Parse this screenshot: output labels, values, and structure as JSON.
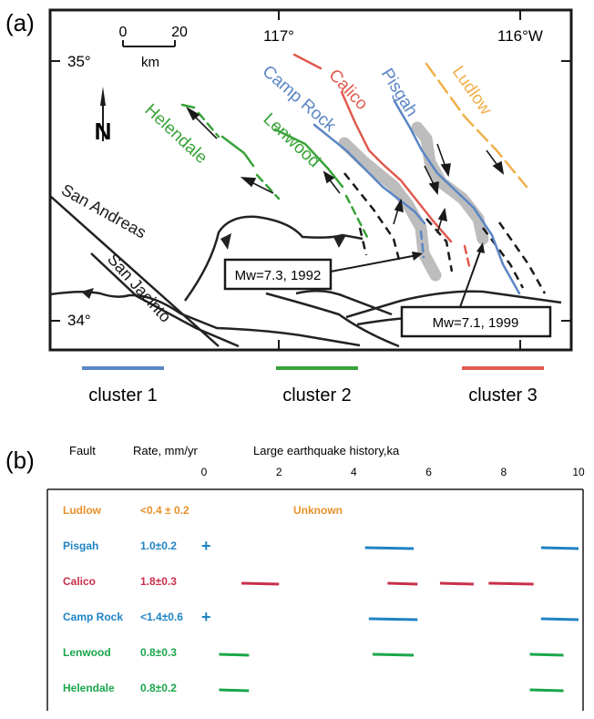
{
  "panel_a": {
    "label": "(a)",
    "scale": {
      "tick0": "0",
      "tick1": "20",
      "unit": "km"
    },
    "coords": {
      "lon117": "117°",
      "lon116": "116°W",
      "lat35": "35°",
      "lat34": "34°"
    },
    "north": "N",
    "faults": {
      "calico": "Calico",
      "camp_rock": "Camp Rock",
      "pisgah": "Pisgah",
      "ludlow": "Ludlow",
      "helendale": "Helendale",
      "lenwood": "Lenwood",
      "san_andreas": "San Andreas",
      "san_jacinto": "San Jacinto"
    },
    "quakes": {
      "q1992": "Mw=7.3, 1992",
      "q1999": "Mw=7.1, 1999"
    },
    "clusters": [
      {
        "label": "cluster  1",
        "color": "#5b86c5"
      },
      {
        "label": "cluster  2",
        "color": "#3aa33a"
      },
      {
        "label": "cluster  3",
        "color": "#e05a4f"
      }
    ]
  },
  "panel_b": {
    "label": "(b)",
    "header": {
      "fault": "Fault",
      "rate": "Rate, mm/yr",
      "history": "Large earthquake history,ka"
    },
    "axis_ticks": [
      "0",
      "2",
      "4",
      "6",
      "8",
      "10"
    ],
    "axis_ticks_values": [
      0,
      2,
      4,
      6,
      8,
      10
    ],
    "rows": [
      {
        "fault": "Ludlow",
        "rate": "<0.4 ± 0.2",
        "color": "#e8912b",
        "note": "Unknown",
        "plus": false,
        "events": []
      },
      {
        "fault": "Pisgah",
        "rate": "1.0±0.2",
        "color": "#1f83c4",
        "plus": true,
        "events": [
          [
            4.3,
            5.6
          ],
          [
            9.0,
            10.0
          ]
        ]
      },
      {
        "fault": "Calico",
        "rate": "1.8±0.3",
        "color": "#c8304a",
        "plus": false,
        "events": [
          [
            1.0,
            2.0
          ],
          [
            4.9,
            5.7
          ],
          [
            6.3,
            7.2
          ],
          [
            7.6,
            8.8
          ]
        ]
      },
      {
        "fault": "Camp Rock",
        "rate": "<1.4±0.6",
        "color": "#1f83c4",
        "plus": true,
        "events": [
          [
            4.4,
            5.7
          ],
          [
            9.0,
            10.0
          ]
        ]
      },
      {
        "fault": "Lenwood",
        "rate": "0.8±0.3",
        "color": "#1aa64a",
        "plus": false,
        "events": [
          [
            0.4,
            1.2
          ],
          [
            4.5,
            5.6
          ],
          [
            8.7,
            9.6
          ]
        ]
      },
      {
        "fault": "Helendale",
        "rate": "0.8±0.2",
        "color": "#1aa64a",
        "plus": false,
        "events": [
          [
            0.4,
            1.2
          ],
          [
            8.7,
            9.6
          ]
        ]
      }
    ]
  }
}
